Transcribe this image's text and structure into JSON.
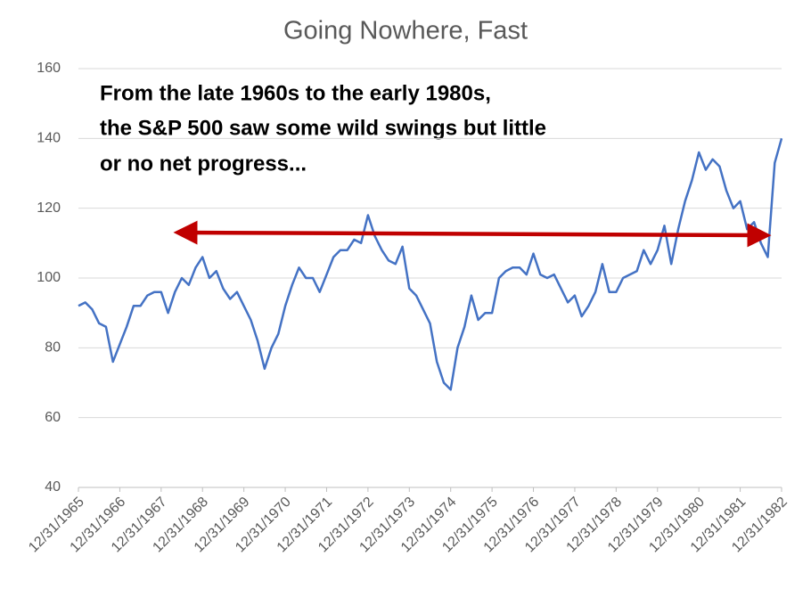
{
  "chart_data": {
    "type": "line",
    "title": "Going Nowhere, Fast",
    "annotation": [
      "From the late 1960s to the early 1980s,",
      "the S&P 500 saw some wild swings but little",
      "or no net progress..."
    ],
    "color": "#4472c4",
    "categories": [
      "12/31/1965",
      null,
      null,
      null,
      null,
      null,
      "12/31/1966",
      null,
      null,
      null,
      null,
      null,
      "12/31/1967",
      null,
      null,
      null,
      null,
      null,
      "12/31/1968",
      null,
      null,
      null,
      null,
      null,
      "12/31/1969",
      null,
      null,
      null,
      null,
      null,
      "12/31/1970",
      null,
      null,
      null,
      null,
      null,
      "12/31/1971",
      null,
      null,
      null,
      null,
      null,
      "12/31/1972",
      null,
      null,
      null,
      null,
      null,
      "12/31/1973",
      null,
      null,
      null,
      null,
      null,
      "12/31/1974",
      null,
      null,
      null,
      null,
      null,
      "12/31/1975",
      null,
      null,
      null,
      null,
      null,
      "12/31/1976",
      null,
      null,
      null,
      null,
      null,
      "12/31/1977",
      null,
      null,
      null,
      null,
      null,
      "12/31/1978",
      null,
      null,
      null,
      null,
      null,
      "12/31/1979",
      null,
      null,
      null,
      null,
      null,
      "12/31/1980",
      null,
      null,
      null,
      null,
      null,
      "12/31/1981",
      null,
      null,
      null,
      null,
      null,
      "12/31/1982"
    ],
    "values": [
      92,
      93,
      91,
      87,
      86,
      76,
      81,
      86,
      92,
      92,
      95,
      96,
      96,
      90,
      96,
      100,
      98,
      103,
      106,
      100,
      102,
      97,
      94,
      96,
      92,
      88,
      82,
      74,
      80,
      84,
      92,
      98,
      103,
      100,
      100,
      96,
      101,
      106,
      108,
      108,
      111,
      110,
      118,
      112,
      108,
      105,
      104,
      109,
      97,
      95,
      91,
      87,
      76,
      70,
      68,
      80,
      86,
      95,
      88,
      90,
      90,
      100,
      102,
      103,
      103,
      101,
      107,
      101,
      100,
      101,
      97,
      93,
      95,
      89,
      92,
      96,
      104,
      96,
      96,
      100,
      101,
      102,
      108,
      104,
      108,
      115,
      104,
      114,
      122,
      128,
      136,
      131,
      134,
      132,
      125,
      120,
      122,
      114,
      116,
      110,
      106,
      133,
      140
    ],
    "ylim": [
      40,
      160
    ],
    "yticks": [
      40,
      60,
      80,
      100,
      120,
      140,
      160
    ],
    "grid": true
  }
}
